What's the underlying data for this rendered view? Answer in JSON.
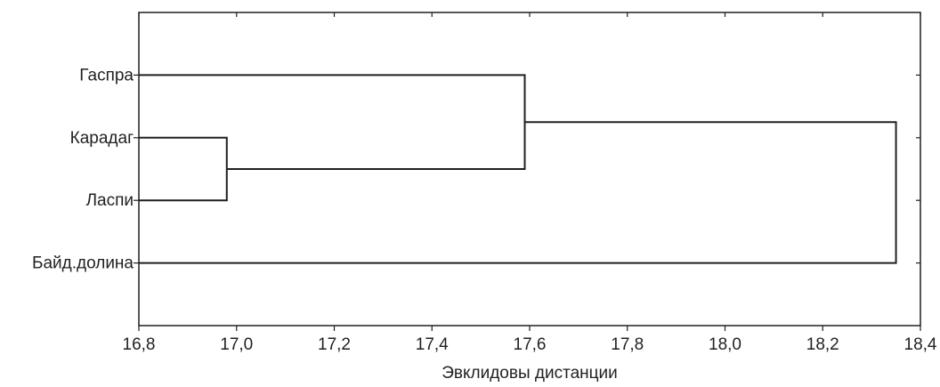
{
  "chart_data": {
    "type": "dendrogram",
    "orientation": "horizontal",
    "xlabel": "Эвклидовы дистанции",
    "xlim": [
      16.8,
      18.4
    ],
    "ticks": [
      "16,8",
      "17,0",
      "17,2",
      "17,4",
      "17,6",
      "17,8",
      "18,0",
      "18,2",
      "18,4"
    ],
    "tick_values": [
      16.8,
      17.0,
      17.2,
      17.4,
      17.6,
      17.8,
      18.0,
      18.2,
      18.4
    ],
    "leaves": [
      "Гаспра",
      "Карадаг",
      "Ласпи",
      "Байд.долина"
    ],
    "merges": [
      {
        "left": "Карадаг",
        "right": "Ласпи",
        "distance": 16.98
      },
      {
        "left": "Гаспра",
        "right": "Карадаг+Ласпи",
        "distance": 17.59
      },
      {
        "left": "Гаспра+Карадаг+Ласпи",
        "right": "Байд.долина",
        "distance": 18.35
      }
    ],
    "grid": false,
    "colors": {
      "ink": "#231f20",
      "background": "#ffffff"
    }
  }
}
